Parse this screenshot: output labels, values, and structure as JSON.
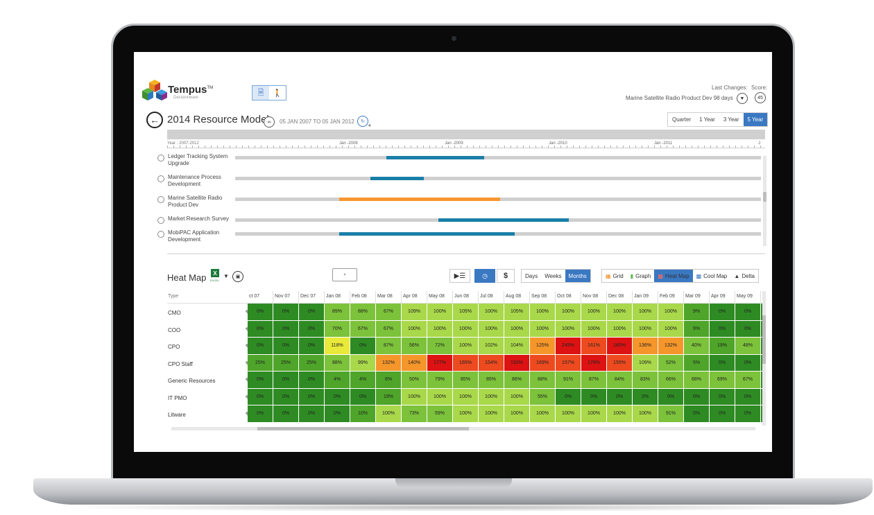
{
  "app": {
    "brand": "Tempus",
    "brand_tm": "TM",
    "brand_sub": "Decisionware"
  },
  "header": {
    "last_changes_label": "Last Changes:",
    "score_label": "Score:",
    "project_info": "Marine Satellite Radio Product Dev 98 days",
    "score_value": "45"
  },
  "model": {
    "title": "2014 Resource Model",
    "date_range": "05 JAN 2007  TO  05 JAN 2012",
    "sub_count": "4",
    "range_tabs": [
      "Quarter",
      "1 Year",
      "3 Year",
      "5 Year"
    ],
    "active_range": "5 Year"
  },
  "timeline": {
    "year_label": "Year : 2007-2012",
    "ticks": [
      "Jan -2008",
      "Jan -2009",
      "Jan -2010",
      "Jan -2011",
      "J"
    ]
  },
  "projects": [
    {
      "label": "Ledger Tracking System Upgrade",
      "bar_start": 0.287,
      "bar_end": 0.474,
      "color": "#1a7fa8"
    },
    {
      "label": "Maintenance Process Development",
      "bar_start": 0.257,
      "bar_end": 0.359,
      "color": "#1a7fa8"
    },
    {
      "label": "Marine Satellite Radio Product Dev",
      "bar_start": 0.198,
      "bar_end": 0.504,
      "color": "#f7962f"
    },
    {
      "label": "Market Research Survey",
      "bar_start": 0.386,
      "bar_end": 0.635,
      "color": "#1a7fa8"
    },
    {
      "label": "MobiPAC Application Development",
      "bar_start": 0.198,
      "bar_end": 0.532,
      "color": "#1a7fa8"
    }
  ],
  "heatmap": {
    "title": "Heat Map",
    "excel_label": "EXCEL",
    "time_units": [
      "Days",
      "Weeks",
      "Months"
    ],
    "active_time_unit": "Months",
    "views": [
      {
        "label": "Grid",
        "icon": "grid-icon"
      },
      {
        "label": "Graph",
        "icon": "graph-icon"
      },
      {
        "label": "Heat Map",
        "icon": "heatmap-icon"
      },
      {
        "label": "Cool Map",
        "icon": "coolmap-icon"
      },
      {
        "label": "Delta",
        "icon": "delta-icon"
      }
    ],
    "active_view": "Heat Map",
    "type_header": "Type",
    "months": [
      "ct 07",
      "Nov 07",
      "Dec 07",
      "Jan 08",
      "Feb 08",
      "Mar 08",
      "Apr 08",
      "May 08",
      "Jun 08",
      "Jul 08",
      "Aug 08",
      "Sep 08",
      "Oct 08",
      "Nov 08",
      "Dec 08",
      "Jan 09",
      "Feb 09",
      "Mar 09",
      "Apr 09",
      "May 09",
      "Ju"
    ],
    "rows": [
      {
        "type": "CMO",
        "values": [
          "0%",
          "0%",
          "0%",
          "89%",
          "88%",
          "67%",
          "109%",
          "100%",
          "105%",
          "100%",
          "105%",
          "100%",
          "100%",
          "100%",
          "100%",
          "100%",
          "100%",
          "9%",
          "0%",
          "0%",
          ""
        ]
      },
      {
        "type": "COO",
        "values": [
          "0%",
          "0%",
          "0%",
          "70%",
          "67%",
          "67%",
          "100%",
          "100%",
          "100%",
          "100%",
          "100%",
          "100%",
          "100%",
          "100%",
          "100%",
          "100%",
          "100%",
          "9%",
          "0%",
          "0%",
          ""
        ]
      },
      {
        "type": "CPO",
        "values": [
          "0%",
          "0%",
          "0%",
          "118%",
          "0%",
          "87%",
          "56%",
          "72%",
          "100%",
          "102%",
          "104%",
          "125%",
          "245%",
          "161%",
          "180%",
          "136%",
          "132%",
          "40%",
          "19%",
          "48%",
          ""
        ]
      },
      {
        "type": "CPO Staff",
        "values": [
          "25%",
          "25%",
          "25%",
          "88%",
          "99%",
          "132%",
          "140%",
          "177%",
          "165%",
          "154%",
          "193%",
          "169%",
          "157%",
          "178%",
          "155%",
          "109%",
          "52%",
          "5%",
          "0%",
          "0%",
          ""
        ]
      },
      {
        "type": "Generic Resources",
        "values": [
          "0%",
          "0%",
          "0%",
          "4%",
          "4%",
          "6%",
          "50%",
          "79%",
          "85%",
          "85%",
          "86%",
          "88%",
          "91%",
          "87%",
          "84%",
          "83%",
          "66%",
          "68%",
          "69%",
          "67%",
          ""
        ]
      },
      {
        "type": "IT PMO",
        "values": [
          "0%",
          "0%",
          "0%",
          "0%",
          "0%",
          "19%",
          "100%",
          "100%",
          "100%",
          "100%",
          "100%",
          "55%",
          "0%",
          "0%",
          "0%",
          "0%",
          "0%",
          "0%",
          "0%",
          "0%",
          ""
        ]
      },
      {
        "type": "Litware",
        "values": [
          "0%",
          "0%",
          "0%",
          "0%",
          "10%",
          "100%",
          "73%",
          "59%",
          "100%",
          "100%",
          "100%",
          "100%",
          "100%",
          "100%",
          "100%",
          "100%",
          "91%",
          "0%",
          "0%",
          "0%",
          ""
        ]
      }
    ],
    "colors": {
      "zero": "#2e8b23",
      "low": "#4ea52a",
      "mid": "#7cc23a",
      "full": "#a9d84a",
      "warn_yellow": "#e9e93a",
      "warn_orange": "#f5962b",
      "hot": "#ee4a1f",
      "critical": "#dd1212"
    }
  }
}
